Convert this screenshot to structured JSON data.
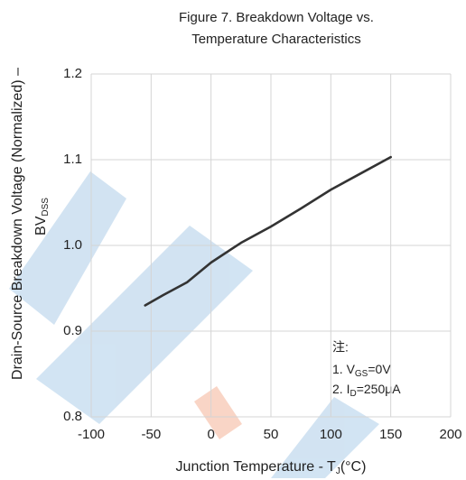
{
  "chart_data": {
    "type": "line",
    "title": [
      "Figure 7. Breakdown Voltage vs.",
      "Temperature Characteristics"
    ],
    "x_label": [
      "Junction Temperature - T",
      "J",
      "(°C)"
    ],
    "y_label": [
      "Drain-Source Breakdown Voltage (Normalized) –",
      [
        "BV",
        "DSS"
      ]
    ],
    "annotation": [
      [
        "注:"
      ],
      [
        "1. V",
        "GS",
        "=0V"
      ],
      [
        "2. I",
        "D",
        "=250μA"
      ]
    ],
    "x": [
      -55,
      -40,
      -20,
      0,
      25,
      50,
      75,
      100,
      125,
      150
    ],
    "series": [
      {
        "name": "BVDSS",
        "color": "#333333",
        "values": [
          0.93,
          0.942,
          0.957,
          0.98,
          1.003,
          1.022,
          1.043,
          1.065,
          1.084,
          1.103
        ]
      }
    ],
    "xlim": [
      -100,
      200
    ],
    "xticks": [
      -100,
      -50,
      0,
      50,
      100,
      150,
      200
    ],
    "ylim": [
      0.8,
      1.2
    ],
    "yticks": [
      0.8,
      0.9,
      {
        "value": 1,
        "label": "1.0"
      },
      1.1,
      1.2
    ],
    "grid": true
  }
}
